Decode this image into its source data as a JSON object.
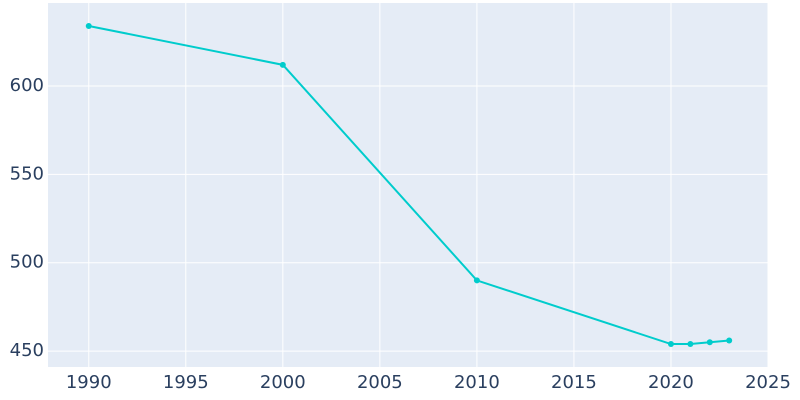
{
  "chart_data": {
    "type": "line",
    "x": [
      1990,
      2000,
      2010,
      2020,
      2021,
      2022,
      2023
    ],
    "series": [
      {
        "color": "#00cccc",
        "values": [
          634,
          612,
          490,
          454,
          454,
          455,
          456
        ]
      }
    ],
    "xlim": [
      1987.9,
      2025
    ],
    "xticks": [
      1990,
      1995,
      2000,
      2005,
      2010,
      2015,
      2020,
      2025
    ],
    "ylim": [
      441,
      647
    ],
    "yticks": [
      450,
      500,
      550,
      600
    ],
    "grid": true
  }
}
